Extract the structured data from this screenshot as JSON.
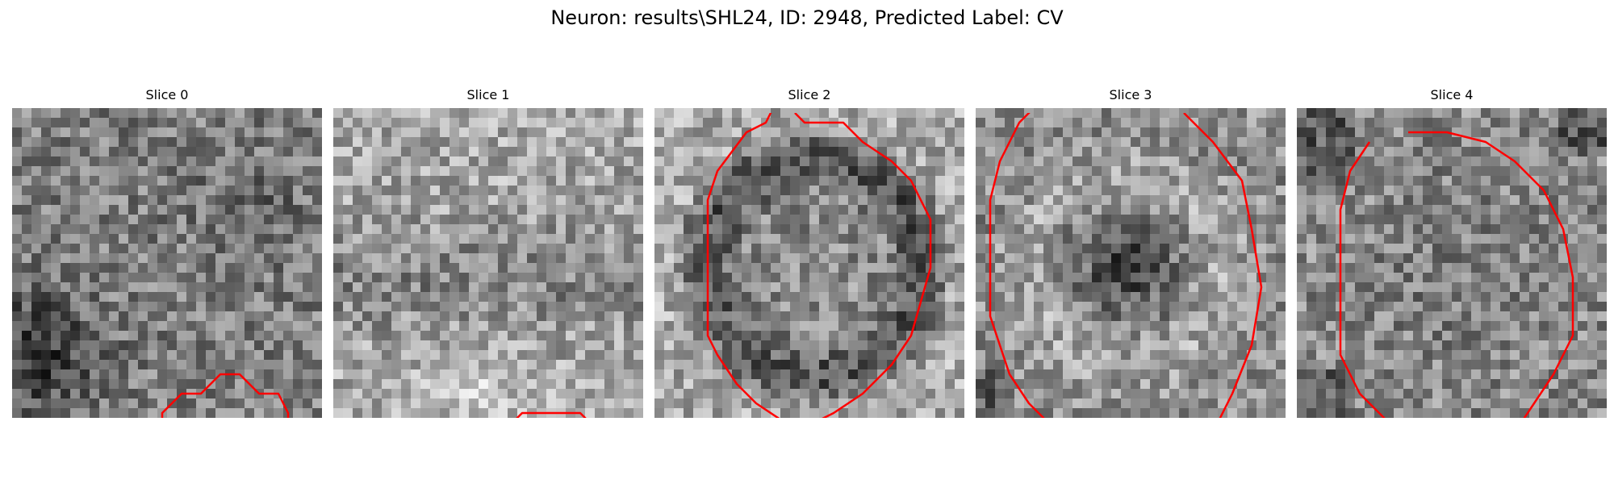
{
  "figure": {
    "title": "Neuron: results\\SHL24, ID: 2948, Predicted Label: CV"
  },
  "panels": [
    {
      "title": "Slice 0",
      "contour": "partial arc at bottom",
      "contour_color": "#ff0000"
    },
    {
      "title": "Slice 1",
      "contour": "partial arc at bottom",
      "contour_color": "#ff0000"
    },
    {
      "title": "Slice 2",
      "contour": "closed outline",
      "contour_color": "#ff0000"
    },
    {
      "title": "Slice 3",
      "contour": "closed outline",
      "contour_color": "#ff0000"
    },
    {
      "title": "Slice 4",
      "contour": "closed outline",
      "contour_color": "#ff0000"
    }
  ],
  "colormap": "gray"
}
